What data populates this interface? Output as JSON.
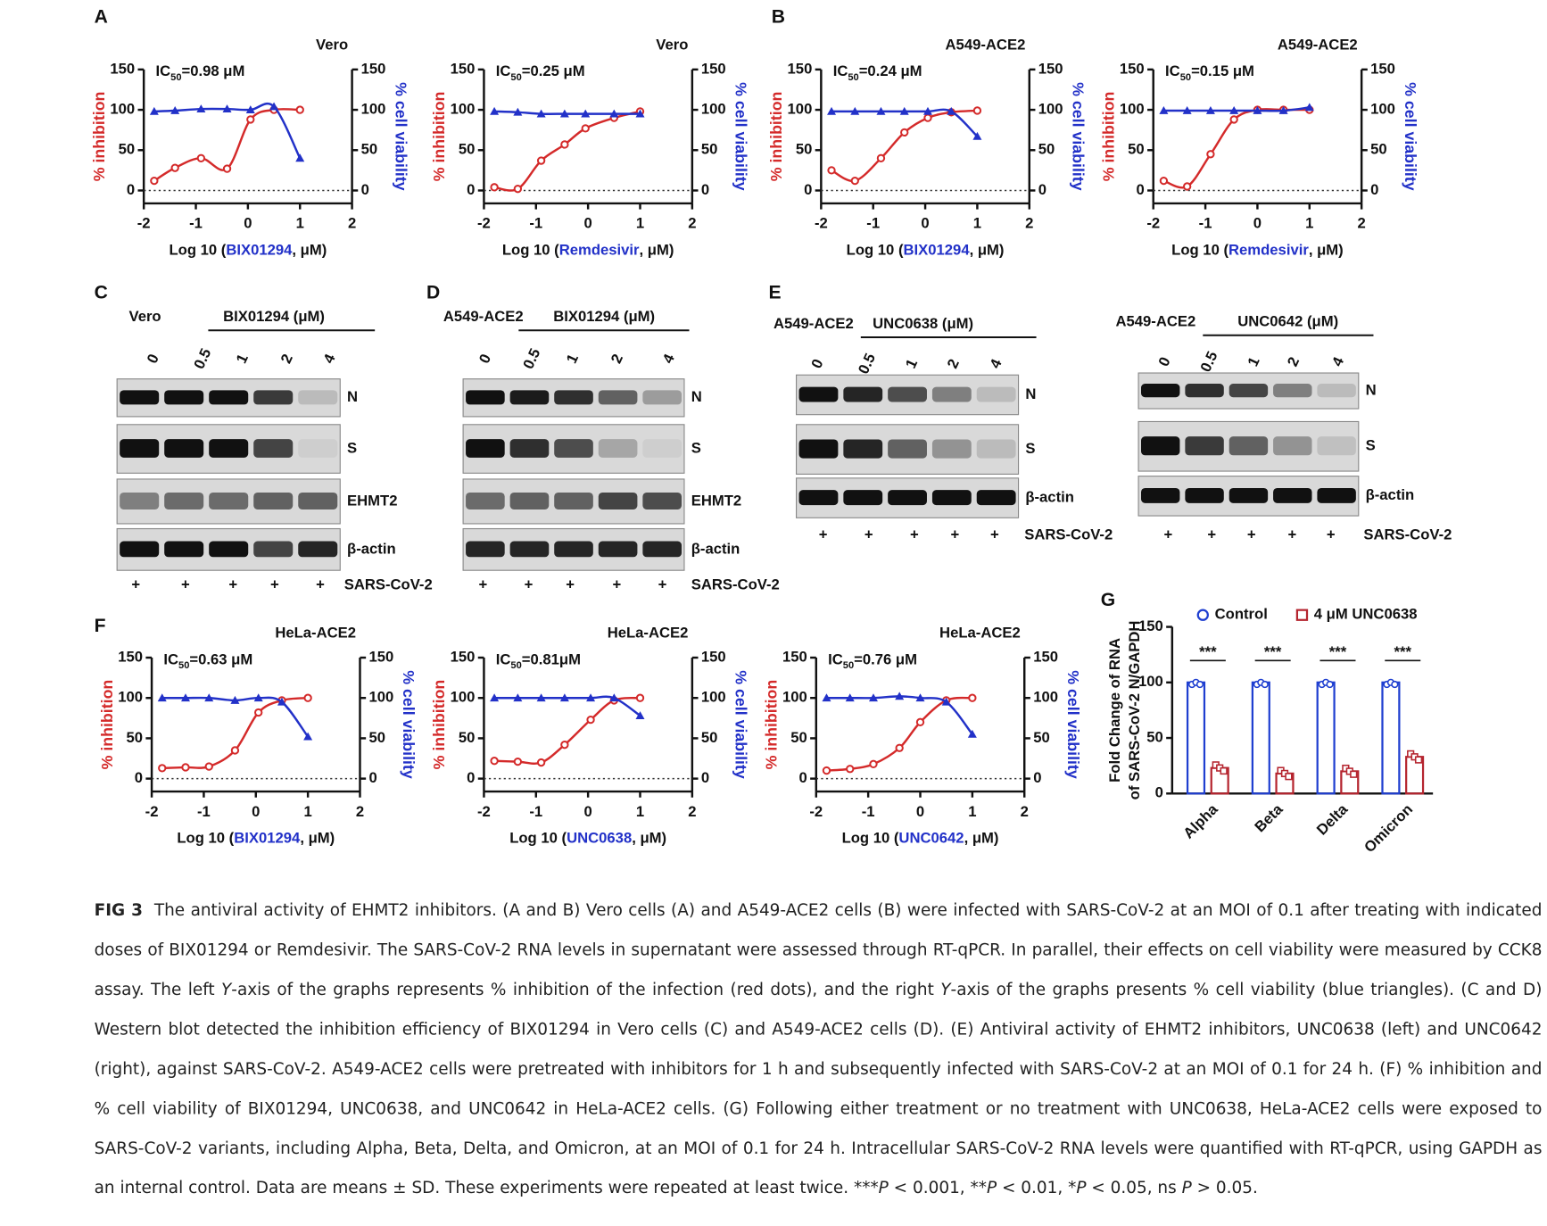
{
  "panel_labels": [
    "A",
    "B",
    "C",
    "D",
    "E",
    "F",
    "G"
  ],
  "chart_data": [
    {
      "type": "dose_response",
      "title": "Vero",
      "annotation": {
        "prefix": "IC",
        "subscript": "50",
        "text": "=0.98 μM"
      },
      "xlabel": {
        "before": "Log 10 (",
        "drug": "BIX01294",
        "after": ",  μM)"
      },
      "ylabel": "% inhibition",
      "y2label": "% cell viability",
      "x": [
        -1.8,
        -1.4,
        -0.9,
        -0.4,
        0.05,
        0.5,
        1.0
      ],
      "series": [
        {
          "color": "#d42a2a",
          "marker": "circle",
          "values": [
            12,
            28,
            40,
            27,
            88,
            100,
            100
          ]
        },
        {
          "color": "#2231c8",
          "marker": "triangle",
          "axis": "y2",
          "values": [
            98,
            99,
            101,
            101,
            100,
            104,
            40
          ]
        }
      ],
      "xlim": [
        -2,
        2
      ],
      "xticks": [
        -2,
        -1,
        0,
        1,
        2
      ],
      "ylim": [
        -16,
        150
      ],
      "yticks": [
        0,
        50,
        100,
        150
      ],
      "y2lim": [
        -16,
        150
      ],
      "y2ticks": [
        0,
        50,
        100,
        150
      ],
      "zero_line": true
    },
    {
      "type": "dose_response",
      "title": "Vero",
      "annotation": {
        "prefix": "IC",
        "subscript": "50",
        "text": "=0.25 μM"
      },
      "xlabel": {
        "before": "Log 10 (",
        "drug": "Remdesivir",
        "after": ",  μM)"
      },
      "ylabel": "% inhibition",
      "y2label": "% cell viability",
      "x": [
        -1.8,
        -1.35,
        -0.9,
        -0.45,
        -0.05,
        0.5,
        1.0
      ],
      "series": [
        {
          "color": "#d42a2a",
          "marker": "circle",
          "values": [
            4,
            2,
            37,
            57,
            77,
            90,
            98
          ]
        },
        {
          "color": "#2231c8",
          "marker": "triangle",
          "axis": "y2",
          "values": [
            98,
            97,
            95,
            95,
            95,
            95,
            95
          ]
        }
      ],
      "xlim": [
        -2,
        2
      ],
      "xticks": [
        -2,
        -1,
        0,
        1,
        2
      ],
      "ylim": [
        -16,
        150
      ],
      "yticks": [
        0,
        50,
        100,
        150
      ],
      "y2lim": [
        -16,
        150
      ],
      "y2ticks": [
        0,
        50,
        100,
        150
      ],
      "zero_line": true
    },
    {
      "type": "dose_response",
      "title": "A549-ACE2",
      "annotation": {
        "prefix": "IC",
        "subscript": "50",
        "text": "=0.24 μM"
      },
      "xlabel": {
        "before": "Log 10 (",
        "drug": "BIX01294",
        "after": ",  μM)"
      },
      "ylabel": "% inhibition",
      "y2label": "% cell viability",
      "x": [
        -1.8,
        -1.35,
        -0.85,
        -0.4,
        0.05,
        0.5,
        1.0
      ],
      "series": [
        {
          "color": "#d42a2a",
          "marker": "circle",
          "values": [
            25,
            12,
            40,
            72,
            90,
            97,
            99
          ]
        },
        {
          "color": "#2231c8",
          "marker": "triangle",
          "axis": "y2",
          "values": [
            98,
            98,
            98,
            98,
            98,
            98,
            67
          ]
        }
      ],
      "xlim": [
        -2,
        2
      ],
      "xticks": [
        -2,
        -1,
        0,
        1,
        2
      ],
      "ylim": [
        -16,
        150
      ],
      "yticks": [
        0,
        50,
        100,
        150
      ],
      "y2lim": [
        -16,
        150
      ],
      "y2ticks": [
        0,
        50,
        100,
        150
      ],
      "zero_line": true
    },
    {
      "type": "dose_response",
      "title": "A549-ACE2",
      "annotation": {
        "prefix": "IC",
        "subscript": "50",
        "text": "=0.15 μM"
      },
      "xlabel": {
        "before": "Log 10 (",
        "drug": "Remdesivir",
        "after": ", μM)"
      },
      "ylabel": "% inhibition",
      "y2label": "% cell viability",
      "x": [
        -1.8,
        -1.35,
        -0.9,
        -0.45,
        0,
        0.5,
        1.0
      ],
      "series": [
        {
          "color": "#d42a2a",
          "marker": "circle",
          "values": [
            12,
            5,
            45,
            88,
            100,
            100,
            100
          ]
        },
        {
          "color": "#2231c8",
          "marker": "triangle",
          "axis": "y2",
          "values": [
            99,
            99,
            99,
            99,
            99,
            99,
            103
          ]
        }
      ],
      "xlim": [
        -2,
        2
      ],
      "xticks": [
        -2,
        -1,
        0,
        1,
        2
      ],
      "ylim": [
        -16,
        150
      ],
      "yticks": [
        0,
        50,
        100,
        150
      ],
      "y2lim": [
        -16,
        150
      ],
      "y2ticks": [
        0,
        50,
        100,
        150
      ],
      "zero_line": true
    },
    {
      "type": "dose_response",
      "title": "HeLa-ACE2",
      "annotation": {
        "prefix": "IC",
        "subscript": "50",
        "text": "=0.63 μM"
      },
      "xlabel": {
        "before": "Log 10 (",
        "drug": "BIX01294",
        "after": ",  μM)"
      },
      "ylabel": "% inhibition",
      "y2label": "% cell viability",
      "x": [
        -1.8,
        -1.35,
        -0.9,
        -0.4,
        0.05,
        0.5,
        1.0
      ],
      "series": [
        {
          "color": "#d42a2a",
          "marker": "circle",
          "values": [
            13,
            14,
            15,
            35,
            82,
            97,
            100
          ]
        },
        {
          "color": "#2231c8",
          "marker": "triangle",
          "axis": "y2",
          "values": [
            100,
            100,
            100,
            97,
            100,
            95,
            52
          ]
        }
      ],
      "xlim": [
        -2,
        2
      ],
      "xticks": [
        -2,
        -1,
        0,
        1,
        2
      ],
      "ylim": [
        -16,
        150
      ],
      "yticks": [
        0,
        50,
        100,
        150
      ],
      "y2lim": [
        -16,
        150
      ],
      "y2ticks": [
        0,
        50,
        100,
        150
      ],
      "zero_line": true
    },
    {
      "type": "dose_response",
      "title": "HeLa-ACE2",
      "annotation": {
        "prefix": "IC",
        "subscript": "50",
        "text": "=0.81μM"
      },
      "xlabel": {
        "before": "Log 10 (",
        "drug": "UNC0638",
        "after": ",  μM)"
      },
      "ylabel": "% inhibition",
      "y2label": "% cell viability",
      "x": [
        -1.8,
        -1.35,
        -0.9,
        -0.45,
        0.05,
        0.5,
        1.0
      ],
      "series": [
        {
          "color": "#d42a2a",
          "marker": "circle",
          "values": [
            22,
            21,
            20,
            42,
            73,
            97,
            100
          ]
        },
        {
          "color": "#2231c8",
          "marker": "triangle",
          "axis": "y2",
          "values": [
            100,
            100,
            100,
            100,
            100,
            100,
            78
          ]
        }
      ],
      "xlim": [
        -2,
        2
      ],
      "xticks": [
        -2,
        -1,
        0,
        1,
        2
      ],
      "ylim": [
        -16,
        150
      ],
      "yticks": [
        0,
        50,
        100,
        150
      ],
      "y2lim": [
        -16,
        150
      ],
      "y2ticks": [
        0,
        50,
        100,
        150
      ],
      "zero_line": true
    },
    {
      "type": "dose_response",
      "title": "HeLa-ACE2",
      "annotation": {
        "prefix": "IC",
        "subscript": "50",
        "text": "=0.76 μM"
      },
      "xlabel": {
        "before": "Log 10 (",
        "drug": "UNC0642",
        "after": ",  μM)"
      },
      "ylabel": "% inhibition",
      "y2label": "% cell viability",
      "x": [
        -1.8,
        -1.35,
        -0.9,
        -0.4,
        0,
        0.5,
        1.0
      ],
      "series": [
        {
          "color": "#d42a2a",
          "marker": "circle",
          "values": [
            10,
            12,
            18,
            38,
            70,
            97,
            100
          ]
        },
        {
          "color": "#2231c8",
          "marker": "triangle",
          "axis": "y2",
          "values": [
            100,
            100,
            100,
            102,
            100,
            95,
            55
          ]
        }
      ],
      "xlim": [
        -2,
        2
      ],
      "xticks": [
        -2,
        -1,
        0,
        1,
        2
      ],
      "ylim": [
        -16,
        150
      ],
      "yticks": [
        0,
        50,
        100,
        150
      ],
      "y2lim": [
        -16,
        150
      ],
      "y2ticks": [
        0,
        50,
        100,
        150
      ],
      "zero_line": true
    },
    {
      "type": "bar",
      "ylabel": [
        "Fold Change of RNA",
        "of SARS-CoV-2 N/GAPDH"
      ],
      "categories": [
        "Alpha",
        "Beta",
        "Delta",
        "Omicron"
      ],
      "series": [
        {
          "name": "Control",
          "color": "#1f3fd0",
          "marker": "circle",
          "values": [
            100,
            100,
            100,
            100
          ]
        },
        {
          "name": "4 μM UNC0638",
          "color": "#b5252f",
          "marker": "square",
          "values": [
            23,
            18,
            20,
            33
          ]
        }
      ],
      "annotations": [
        "***",
        "***",
        "***",
        "***"
      ],
      "ylim": [
        0,
        150
      ],
      "yticks": [
        0,
        50,
        100,
        150
      ],
      "legend": "top"
    }
  ],
  "blots": [
    {
      "cell": "Vero",
      "drug": "BIX01294 (μM)",
      "doses": [
        "0",
        "0.5",
        "1",
        "2",
        "4"
      ],
      "rows": [
        "N",
        "S",
        "EHMT2",
        "β-actin"
      ],
      "treatment": "SARS-CoV-2",
      "marks": [
        "+",
        "+",
        "+",
        "+",
        "+"
      ]
    },
    {
      "cell": "A549-ACE2",
      "drug": "BIX01294 (μM)",
      "doses": [
        "0",
        "0.5",
        "1",
        "2",
        "4"
      ],
      "rows": [
        "N",
        "S",
        "EHMT2",
        "β-actin"
      ],
      "treatment": "SARS-CoV-2",
      "marks": [
        "+",
        "+",
        "+",
        "+",
        "+"
      ]
    },
    {
      "cell": "A549-ACE2",
      "drug": "UNC0638 (μM)",
      "doses": [
        "0",
        "0.5",
        "1",
        "2",
        "4"
      ],
      "rows": [
        "N",
        "S",
        "β-actin"
      ],
      "treatment": "SARS-CoV-2",
      "marks": [
        "+",
        "+",
        "+",
        "+",
        "+"
      ]
    },
    {
      "cell": "A549-ACE2",
      "drug": "UNC0642 (μM)",
      "doses": [
        "0",
        "0.5",
        "1",
        "2",
        "4"
      ],
      "rows": [
        "N",
        "S",
        "β-actin"
      ],
      "treatment": "SARS-CoV-2",
      "marks": [
        "+",
        "+",
        "+",
        "+",
        "+"
      ]
    }
  ],
  "caption": {
    "label": "FIG 3",
    "runs": [
      {
        "text": "The antiviral activity of EHMT2 inhibitors. (A and B) Vero cells (A) and A549-ACE2 cells (B) were infected with SARS-CoV-2 at an MOI of 0.1 after treating with indicated doses of BIX01294 or Remdesivir. The SARS-CoV-2 RNA levels in supernatant were assessed through RT-qPCR. In parallel, their effects on cell viability were measured by CCK8 assay. The left ",
        "italic": false
      },
      {
        "text": "Y",
        "italic": true
      },
      {
        "text": "-axis of the graphs represents % inhibition of the infection (red dots), and the right ",
        "italic": false
      },
      {
        "text": "Y",
        "italic": true
      },
      {
        "text": "-axis of the graphs presents % cell viability (blue triangles). (C and D) Western blot detected the inhibition efficiency of BIX01294 in Vero cells (C) and A549-ACE2 cells (D). (E) Antiviral activity of EHMT2 inhibitors, UNC0638 (left) and UNC0642 (right), against SARS-CoV-2. A549-ACE2 cells were pretreated with inhibitors for 1 h and subsequently infected with SARS-CoV-2 at an MOI of 0.1 for 24 h. (F) % inhibition and % cell viability of BIX01294, UNC0638, and UNC0642 in HeLa-ACE2 cells. (G) Following either treatment or no treatment with UNC0638, HeLa-ACE2 cells were exposed to SARS-CoV-2 variants, including Alpha, Beta, Delta, and Omicron, at an MOI of 0.1 for 24 h. Intracellular SARS-CoV-2 RNA levels were quantified with RT-qPCR, using GAPDH as an internal control. Data are means ± SD. These experiments were repeated at least twice. ***",
        "italic": false
      },
      {
        "text": "P",
        "italic": true
      },
      {
        "text": " < 0.001, **",
        "italic": false
      },
      {
        "text": "P",
        "italic": true
      },
      {
        "text": " < 0.01, *",
        "italic": false
      },
      {
        "text": "P",
        "italic": true
      },
      {
        "text": " < 0.05, ns ",
        "italic": false
      },
      {
        "text": "P",
        "italic": true
      },
      {
        "text": " > 0.05.",
        "italic": false
      }
    ]
  }
}
